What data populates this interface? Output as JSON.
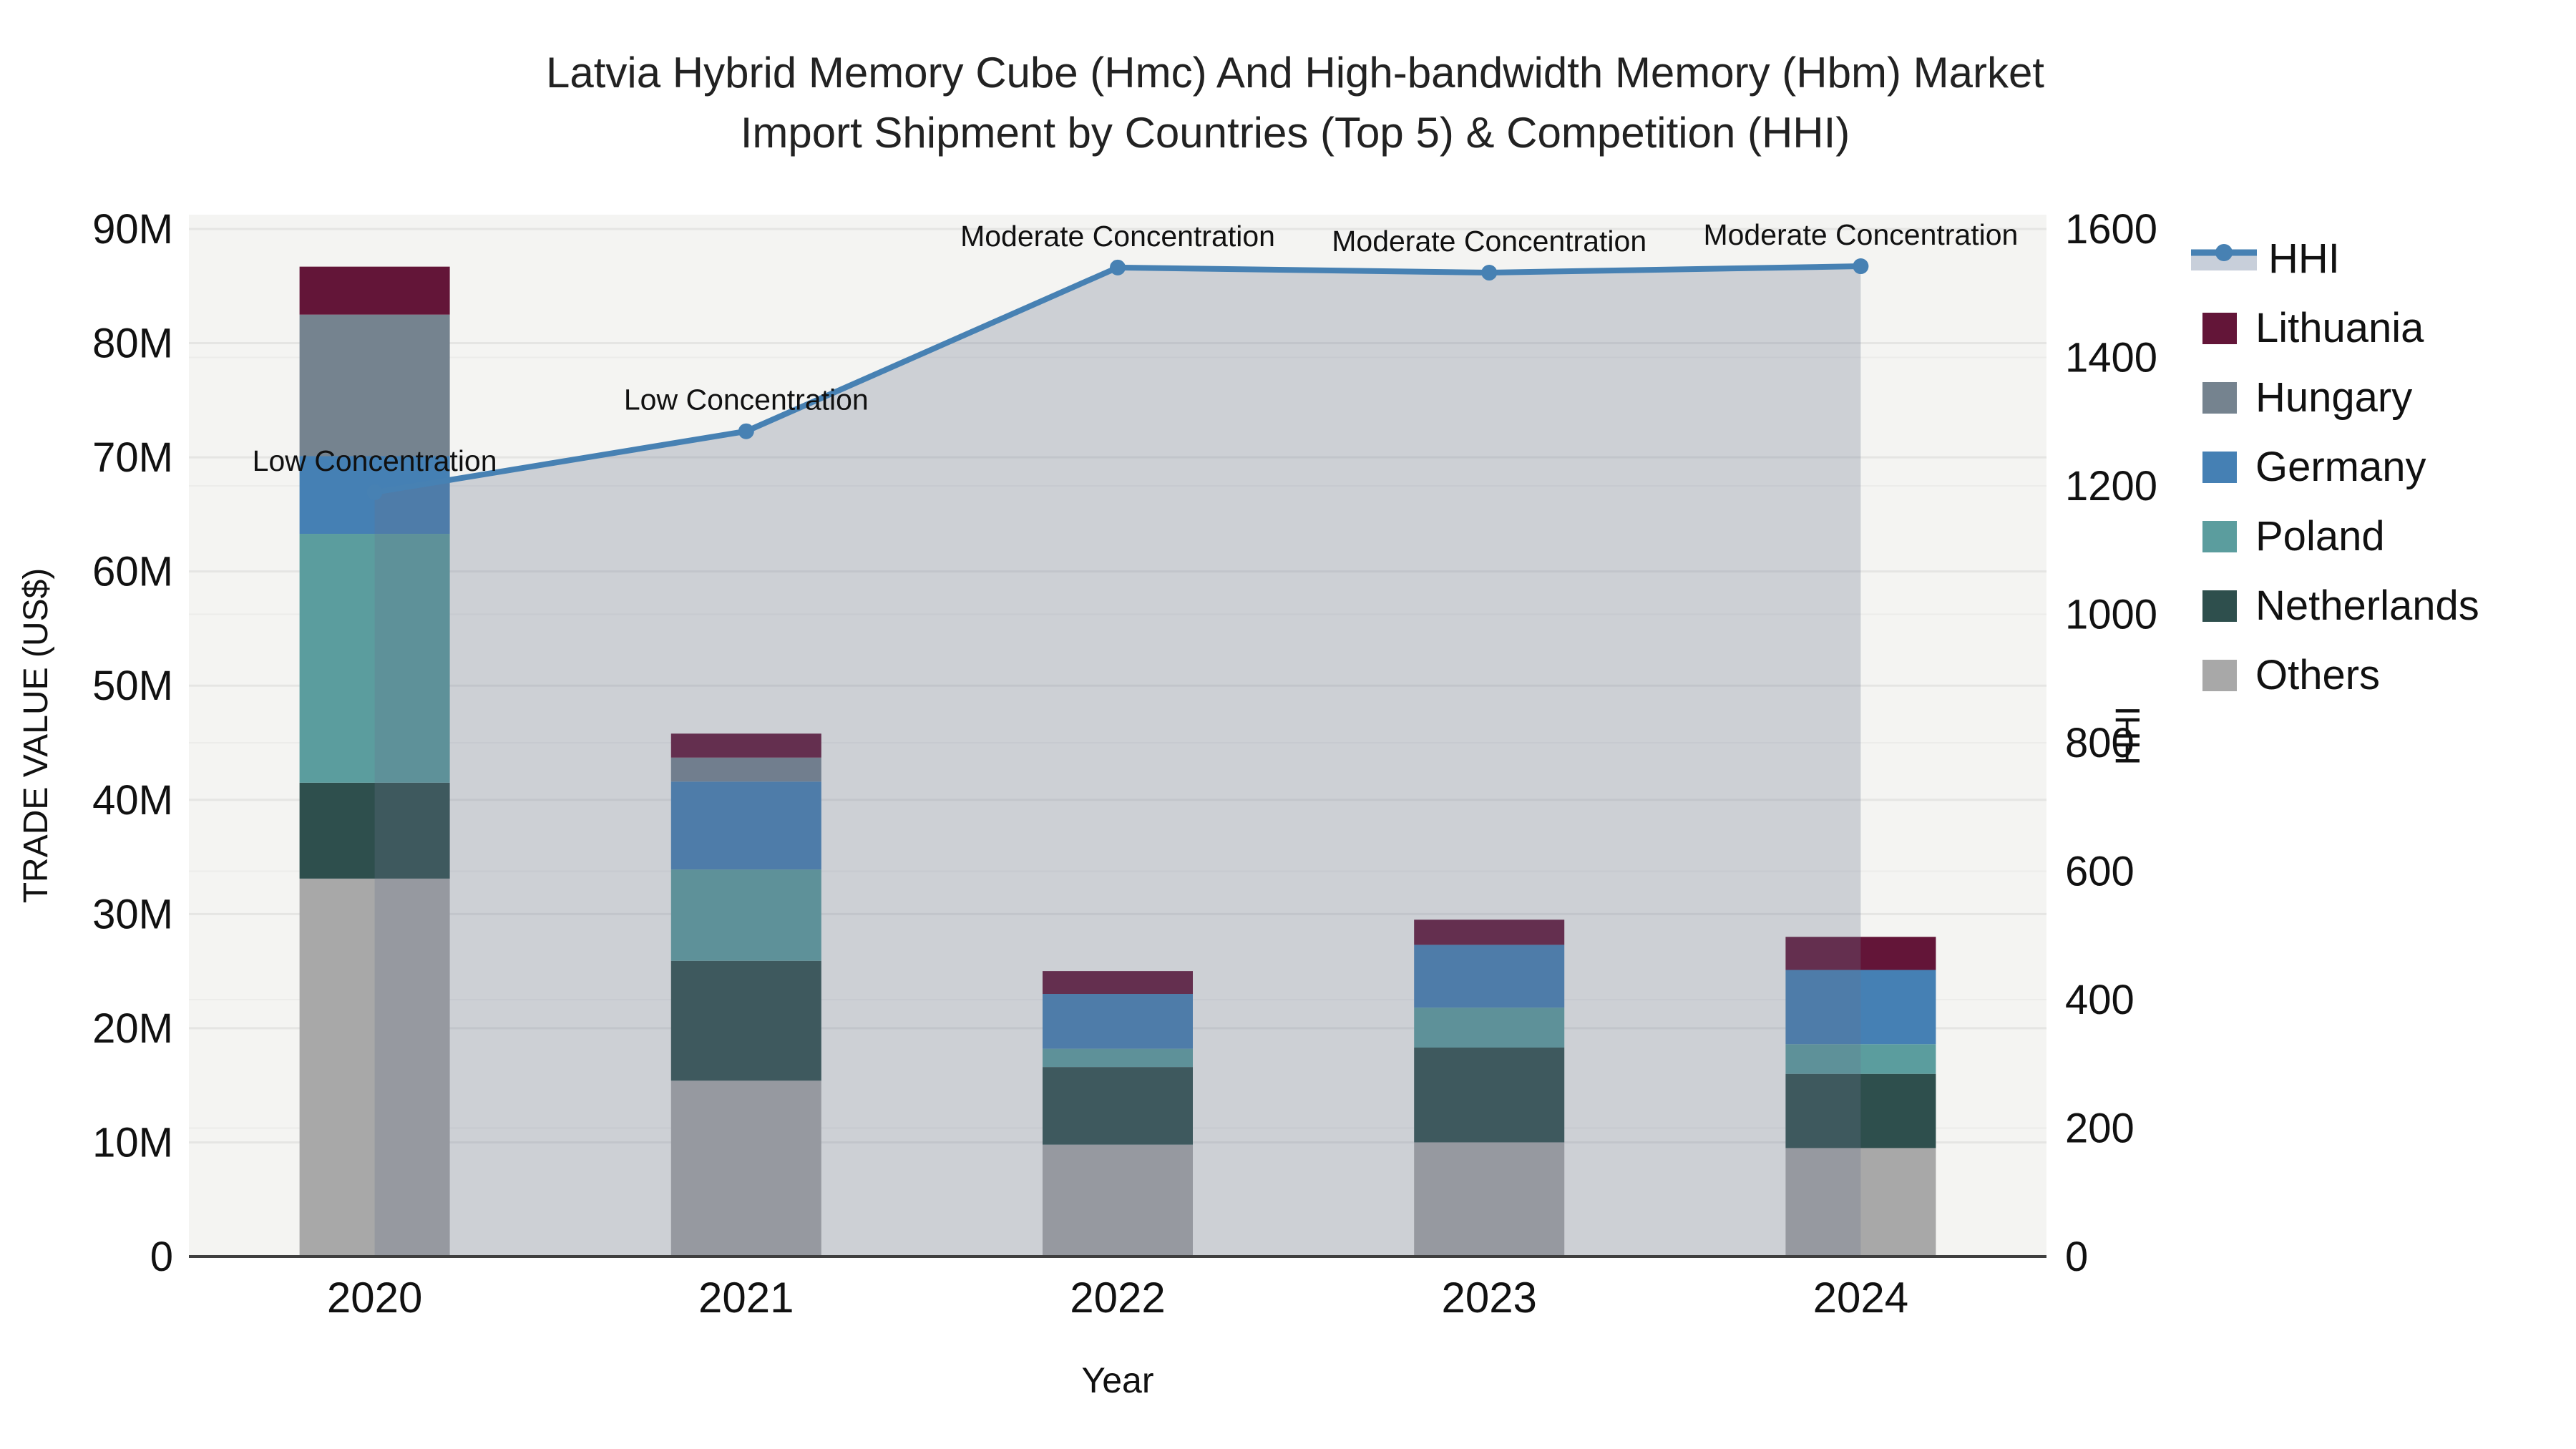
{
  "title": {
    "line1": "Latvia Hybrid Memory Cube (Hmc) And High-bandwidth Memory (Hbm) Market",
    "line2": "Import Shipment by Countries (Top 5) & Competition (HHI)"
  },
  "axes": {
    "x": {
      "title": "Year",
      "categories": [
        "2020",
        "2021",
        "2022",
        "2023",
        "2024"
      ]
    },
    "y_left": {
      "title": "TRADE VALUE (US$)",
      "tick_labels": [
        "0",
        "10M",
        "20M",
        "30M",
        "40M",
        "50M",
        "60M",
        "70M",
        "80M",
        "90M"
      ],
      "tick_values": [
        0,
        10,
        20,
        30,
        40,
        50,
        60,
        70,
        80,
        90
      ],
      "max": 90
    },
    "y_right": {
      "title": "HHI",
      "tick_labels": [
        "0",
        "200",
        "400",
        "600",
        "800",
        "1000",
        "1200",
        "1400",
        "1600"
      ],
      "tick_values": [
        0,
        200,
        400,
        600,
        800,
        1000,
        1200,
        1400,
        1600
      ],
      "max": 1600
    }
  },
  "legend": {
    "items": [
      {
        "label": "HHI",
        "type": "line",
        "color": "#4781b3"
      },
      {
        "label": "Lithuania",
        "type": "swatch",
        "color": "#631538"
      },
      {
        "label": "Hungary",
        "type": "swatch",
        "color": "#75838f"
      },
      {
        "label": "Germany",
        "type": "swatch",
        "color": "#4580b4"
      },
      {
        "label": "Poland",
        "type": "swatch",
        "color": "#5b9d9e"
      },
      {
        "label": "Netherlands",
        "type": "swatch",
        "color": "#2e4f4d"
      },
      {
        "label": "Others",
        "type": "swatch",
        "color": "#a8a8a8"
      }
    ]
  },
  "chart_data": {
    "type": "bar+line",
    "title": "Latvia Hybrid Memory Cube (Hmc) And High-bandwidth Memory (Hbm) Market Import Shipment by Countries (Top 5) & Competition (HHI)",
    "categories": [
      "2020",
      "2021",
      "2022",
      "2023",
      "2024"
    ],
    "bar_value_unit": "million US$",
    "stack_order_note": "series listed bottom-to-top of stack",
    "series": [
      {
        "name": "Others",
        "color": "#a8a8a8",
        "values": [
          33.1,
          15.4,
          9.8,
          10.0,
          9.5
        ]
      },
      {
        "name": "Netherlands",
        "color": "#2e4f4d",
        "values": [
          8.4,
          10.5,
          6.8,
          8.3,
          6.5
        ]
      },
      {
        "name": "Poland",
        "color": "#5b9d9e",
        "values": [
          21.8,
          8.0,
          1.6,
          3.5,
          2.6
        ]
      },
      {
        "name": "Germany",
        "color": "#4580b4",
        "values": [
          6.8,
          7.7,
          4.8,
          5.5,
          6.5
        ]
      },
      {
        "name": "Hungary",
        "color": "#75838f",
        "values": [
          12.4,
          2.1,
          0,
          0,
          0
        ]
      },
      {
        "name": "Lithuania",
        "color": "#631538",
        "values": [
          4.2,
          2.1,
          2.0,
          2.2,
          2.9
        ]
      }
    ],
    "bar_totals": [
      86.7,
      45.8,
      25.0,
      29.5,
      28.0
    ],
    "line_series": {
      "name": "HHI",
      "values": [
        1190,
        1285,
        1540,
        1532,
        1542
      ],
      "color": "#4781b3",
      "fill_color": "rgba(105,115,140,0.28)",
      "annotations": [
        "Low Concentration",
        "Low Concentration",
        "Moderate Concentration",
        "Moderate Concentration",
        "Moderate Concentration"
      ]
    },
    "ylim_left": [
      0,
      90
    ],
    "ylim_right": [
      0,
      1600
    ],
    "grid": true,
    "legend_position": "right"
  }
}
